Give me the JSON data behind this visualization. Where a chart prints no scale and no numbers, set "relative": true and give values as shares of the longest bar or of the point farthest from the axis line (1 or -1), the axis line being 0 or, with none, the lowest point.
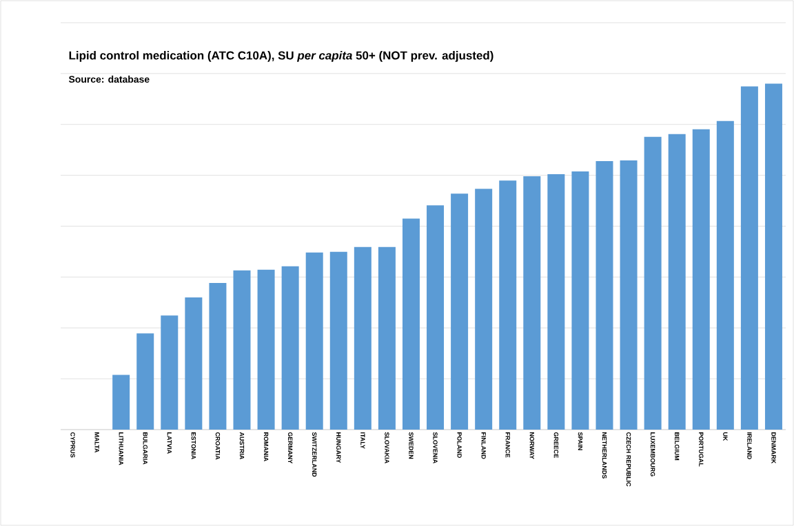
{
  "chart_data": {
    "type": "bar",
    "title": "Lipid control medication (ATC C10A), SU *per capita* 50+ (NOT prev. adjusted)",
    "subtitle": "Source: database",
    "relative": true,
    "grid": "y",
    "color": "#5b9bd5",
    "categories": [
      "CYPRUS",
      "MALTA",
      "LITHUANIA",
      "BULGARIA",
      "LATVIA",
      "ESTONIA",
      "CROATIA",
      "AUSTRIA",
      "ROMANIA",
      "GERMANY",
      "SWITZERLAND",
      "HUNGARY",
      "ITALY",
      "SLOVAKIA",
      "SWEDEN",
      "SLOVENIA",
      "POLAND",
      "FINLAND",
      "FRANCE",
      "NORWAY",
      "GREECE",
      "SPAIN",
      "NETHERLANDS",
      "CZECH REPUBLIC",
      "LUXEMBOURG",
      "BELGIUM",
      "PORTUGAL",
      "UK",
      "IRELAND",
      "DENMARK"
    ],
    "values": [
      0,
      0,
      0.158,
      0.278,
      0.33,
      0.382,
      0.424,
      0.46,
      0.462,
      0.472,
      0.512,
      0.514,
      0.528,
      0.528,
      0.61,
      0.648,
      0.682,
      0.696,
      0.72,
      0.732,
      0.738,
      0.746,
      0.776,
      0.778,
      0.846,
      0.854,
      0.868,
      0.892,
      0.992,
      1
    ]
  }
}
